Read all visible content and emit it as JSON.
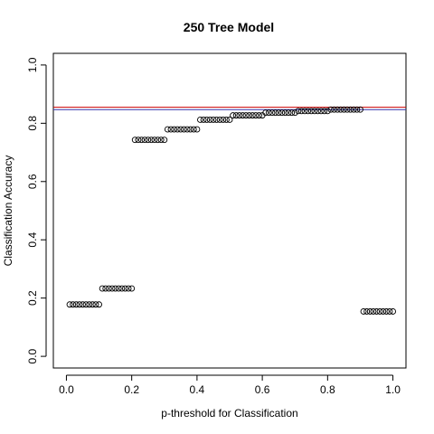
{
  "chart_data": {
    "type": "scatter",
    "title": "250 Tree Model",
    "xlabel": "p-threshold for Classification",
    "ylabel": "Classification Accuracy",
    "xlim": [
      -0.04,
      1.04
    ],
    "ylim": [
      -0.04,
      1.04
    ],
    "x_ticks": [
      "0.0",
      "0.2",
      "0.4",
      "0.6",
      "0.8",
      "1.0"
    ],
    "y_ticks": [
      "0.0",
      "0.2",
      "0.4",
      "0.6",
      "0.8",
      "1.0"
    ],
    "point_style": "open-circle",
    "groups": [
      {
        "x_start": 0.01,
        "x_end": 0.1,
        "y": 0.178
      },
      {
        "x_start": 0.11,
        "x_end": 0.2,
        "y": 0.233
      },
      {
        "x_start": 0.21,
        "x_end": 0.3,
        "y": 0.743
      },
      {
        "x_start": 0.31,
        "x_end": 0.4,
        "y": 0.779
      },
      {
        "x_start": 0.41,
        "x_end": 0.5,
        "y": 0.812
      },
      {
        "x_start": 0.51,
        "x_end": 0.6,
        "y": 0.827
      },
      {
        "x_start": 0.61,
        "x_end": 0.7,
        "y": 0.836
      },
      {
        "x_start": 0.71,
        "x_end": 0.8,
        "y": 0.842
      },
      {
        "x_start": 0.81,
        "x_end": 0.9,
        "y": 0.847
      },
      {
        "x_start": 0.91,
        "x_end": 1.0,
        "y": 0.154
      }
    ],
    "hlines": [
      {
        "y": 0.855,
        "color": "#cc0000"
      },
      {
        "y": 0.847,
        "color": "#3333aa"
      }
    ],
    "grid": false,
    "legend": "none"
  }
}
